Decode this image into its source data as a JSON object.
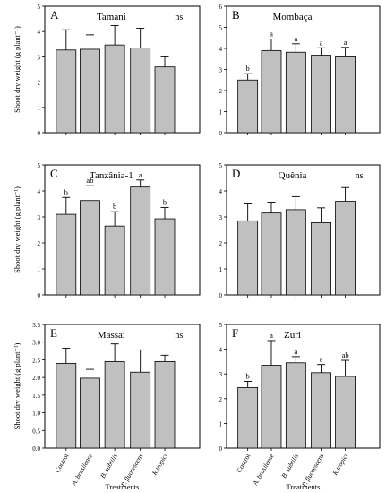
{
  "figure": {
    "ylabel": "Shoot dry weight (g plant⁻¹)",
    "xlabel": "Treatments"
  },
  "chart_data": [
    {
      "type": "bar",
      "panel_letter": "A",
      "title": "Tamani",
      "significance": "ns",
      "categories": [
        "Control",
        "A. brasilense",
        "B. subtilis",
        "P. fluorescens",
        "R.tropici"
      ],
      "values": [
        3.27,
        3.3,
        3.47,
        3.35,
        2.6
      ],
      "errors": [
        0.8,
        0.57,
        0.77,
        0.78,
        0.4
      ],
      "letters": [
        "",
        "",
        "",
        "",
        ""
      ],
      "ylim": [
        0,
        5
      ],
      "yticks": [
        0,
        1,
        2,
        3,
        4,
        5
      ],
      "ytick_labels": [
        "0",
        "1",
        "2",
        "3",
        "4",
        "5"
      ],
      "ylabel": "Shoot dry weight (g plant⁻¹)",
      "xlabel": "",
      "show_xticklabels": false
    },
    {
      "type": "bar",
      "panel_letter": "B",
      "title": "Mombaça",
      "significance": "",
      "categories": [
        "Control",
        "A. brasilense",
        "B. subtilis",
        "P. fluorescens",
        "R.tropici"
      ],
      "values": [
        2.5,
        3.9,
        3.82,
        3.68,
        3.6
      ],
      "errors": [
        0.3,
        0.55,
        0.4,
        0.35,
        0.45
      ],
      "letters": [
        "b",
        "a",
        "a",
        "a",
        "a"
      ],
      "ylim": [
        0,
        6
      ],
      "yticks": [
        0,
        1,
        2,
        3,
        4,
        5,
        6
      ],
      "ytick_labels": [
        "0",
        "1",
        "2",
        "3",
        "4",
        "5",
        "6"
      ],
      "ylabel": "",
      "xlabel": "",
      "show_xticklabels": false
    },
    {
      "type": "bar",
      "panel_letter": "C",
      "title": "Tanzânia-1",
      "significance": "",
      "categories": [
        "Control",
        "A. brasilense",
        "B. subtilis",
        "P. fluorescens",
        "R.tropici"
      ],
      "values": [
        3.1,
        3.63,
        2.65,
        4.15,
        2.93
      ],
      "errors": [
        0.65,
        0.57,
        0.55,
        0.27,
        0.43
      ],
      "letters": [
        "b",
        "ab",
        "b",
        "a",
        "b"
      ],
      "ylim": [
        0,
        5
      ],
      "yticks": [
        0,
        1,
        2,
        3,
        4,
        5
      ],
      "ytick_labels": [
        "0",
        "1",
        "2",
        "3",
        "4",
        "5"
      ],
      "ylabel": "Shoot dry weight (g plant⁻¹)",
      "xlabel": "",
      "show_xticklabels": false
    },
    {
      "type": "bar",
      "panel_letter": "D",
      "title": "Quênia",
      "significance": "ns",
      "categories": [
        "Control",
        "A. brasilense",
        "B. subtilis",
        "P. fluorescens",
        "R.tropici"
      ],
      "values": [
        2.85,
        3.15,
        3.28,
        2.78,
        3.6
      ],
      "errors": [
        0.65,
        0.42,
        0.5,
        0.57,
        0.53
      ],
      "letters": [
        "",
        "",
        "",
        "",
        ""
      ],
      "ylim": [
        0,
        5
      ],
      "yticks": [
        0,
        1,
        2,
        3,
        4,
        5
      ],
      "ytick_labels": [
        "0",
        "1",
        "2",
        "3",
        "4",
        "5"
      ],
      "ylabel": "",
      "xlabel": "",
      "show_xticklabels": false
    },
    {
      "type": "bar",
      "panel_letter": "E",
      "title": "Massai",
      "significance": "ns",
      "categories": [
        "Control",
        "A. brasilense",
        "B. subtilis",
        "P. fluorescens",
        "R.tropici"
      ],
      "values": [
        2.4,
        1.98,
        2.45,
        2.15,
        2.45
      ],
      "errors": [
        0.43,
        0.25,
        0.5,
        0.63,
        0.18
      ],
      "letters": [
        "",
        "",
        "",
        "",
        ""
      ],
      "ylim": [
        0,
        3.5
      ],
      "yticks": [
        0,
        0.5,
        1,
        1.5,
        2,
        2.5,
        3,
        3.5
      ],
      "ytick_labels": [
        "0.0",
        "0.5",
        "1.0",
        "1.5",
        "2.0",
        "2.5",
        "3.0",
        "3.5"
      ],
      "ylabel": "Shoot dry weight (g plant⁻¹)",
      "xlabel": "Treatments",
      "show_xticklabels": true
    },
    {
      "type": "bar",
      "panel_letter": "F",
      "title": "Zuri",
      "significance": "",
      "categories": [
        "Control",
        "A. brasilense",
        "B. subtilis",
        "P. fluorescens",
        "R.tropici"
      ],
      "values": [
        2.45,
        3.35,
        3.45,
        3.05,
        2.9
      ],
      "errors": [
        0.25,
        1.0,
        0.25,
        0.33,
        0.65
      ],
      "letters": [
        "b",
        "a",
        "a",
        "a",
        "ab"
      ],
      "ylim": [
        0,
        5
      ],
      "yticks": [
        0,
        1,
        2,
        3,
        4,
        5
      ],
      "ytick_labels": [
        "0",
        "1",
        "2",
        "3",
        "4",
        "5"
      ],
      "ylabel": "",
      "xlabel": "Treatments",
      "show_xticklabels": true
    }
  ]
}
